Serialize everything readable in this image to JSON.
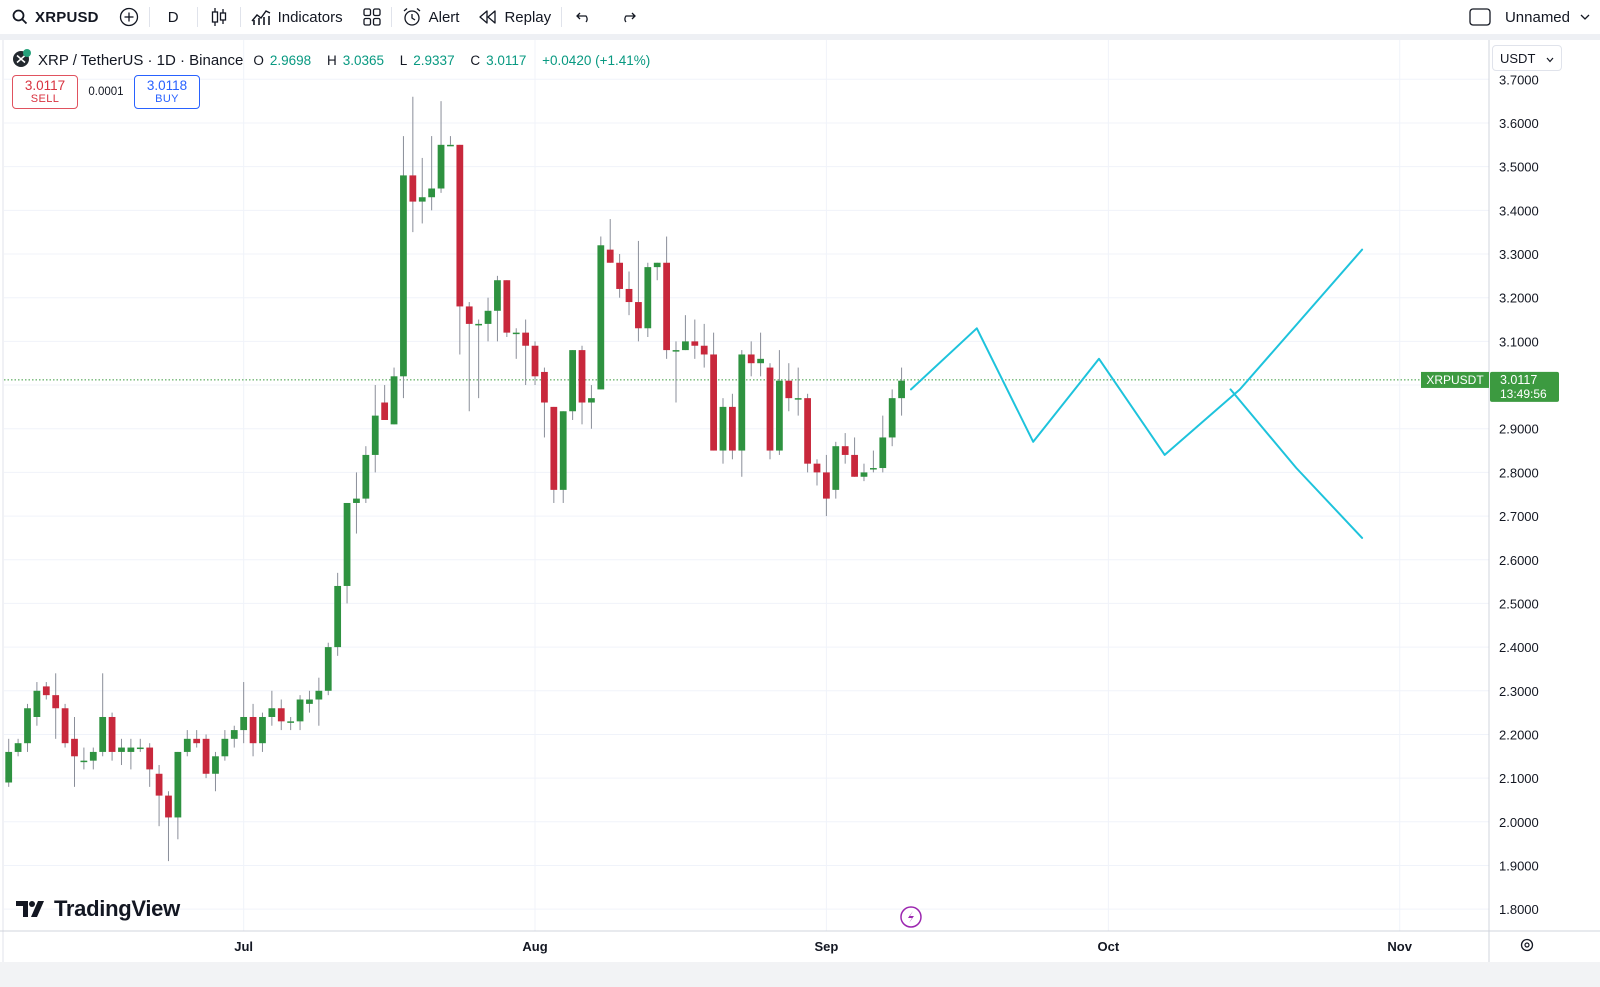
{
  "toolbar": {
    "symbol": "XRPUSD",
    "interval": "D",
    "indicators_label": "Indicators",
    "alert_label": "Alert",
    "replay_label": "Replay",
    "layout_name": "Unnamed",
    "icons": [
      "search-icon",
      "add-symbol-icon",
      "candles-icon",
      "indicators-icon",
      "layouts-icon",
      "alert-icon",
      "replay-icon",
      "undo-icon",
      "redo-icon",
      "checkbox-icon",
      "chevron-down-icon"
    ]
  },
  "legend": {
    "name": "XRP / TetherUS · 1D · Binance",
    "open_key": "O",
    "open": "2.9698",
    "high_key": "H",
    "high": "3.0365",
    "low_key": "L",
    "low": "2.9337",
    "close_key": "C",
    "close": "3.0117",
    "change": "+0.0420 (+1.41%)"
  },
  "trade": {
    "sell_price": "3.0117",
    "sell_label": "SELL",
    "spread": "0.0001",
    "buy_price": "3.0118",
    "buy_label": "BUY"
  },
  "currency": "USDT",
  "price_label": {
    "symbol": "XRPUSDT",
    "price": "3.0117",
    "countdown": "13:49:56"
  },
  "brand": "TradingView",
  "colors": {
    "up": "#2e9240",
    "down": "#c8283c",
    "drawing": "#1ec3dc",
    "accent": "#2962ff",
    "last_price": "#3c9a40"
  },
  "chart_data": {
    "type": "candlestick",
    "y_axis": {
      "ticks": [
        "3.7000",
        "3.6000",
        "3.5000",
        "3.4000",
        "3.3000",
        "3.2000",
        "3.1000",
        "3.0000",
        "2.9000",
        "2.8000",
        "2.7000",
        "2.6000",
        "2.5000",
        "2.4000",
        "2.3000",
        "2.2000",
        "2.1000",
        "2.0000",
        "1.9000",
        "1.8000"
      ],
      "range": [
        1.75,
        3.79
      ]
    },
    "x_axis": {
      "ticks": [
        {
          "label": "Jul",
          "day": 0
        },
        {
          "label": "Aug",
          "day": 31
        },
        {
          "label": "Sep",
          "day": 62
        },
        {
          "label": "Oct",
          "day": 92
        },
        {
          "label": "Nov",
          "day": 123
        }
      ],
      "range_days": [
        -25,
        132
      ]
    },
    "grid": true,
    "last_price": 3.0117,
    "candles": [
      {
        "d": -25,
        "o": 2.09,
        "h": 2.19,
        "l": 2.08,
        "c": 2.16
      },
      {
        "d": -24,
        "o": 2.16,
        "h": 2.19,
        "l": 2.15,
        "c": 2.18
      },
      {
        "d": -23,
        "o": 2.18,
        "h": 2.27,
        "l": 2.16,
        "c": 2.26
      },
      {
        "d": -22,
        "o": 2.24,
        "h": 2.32,
        "l": 2.22,
        "c": 2.3
      },
      {
        "d": -21,
        "o": 2.31,
        "h": 2.32,
        "l": 2.28,
        "c": 2.29
      },
      {
        "d": -20,
        "o": 2.29,
        "h": 2.34,
        "l": 2.19,
        "c": 2.26
      },
      {
        "d": -19,
        "o": 2.26,
        "h": 2.27,
        "l": 2.17,
        "c": 2.18
      },
      {
        "d": -18,
        "o": 2.19,
        "h": 2.24,
        "l": 2.08,
        "c": 2.15
      },
      {
        "d": -17,
        "o": 2.14,
        "h": 2.17,
        "l": 2.12,
        "c": 2.14
      },
      {
        "d": -16,
        "o": 2.14,
        "h": 2.17,
        "l": 2.12,
        "c": 2.16
      },
      {
        "d": -15,
        "o": 2.16,
        "h": 2.34,
        "l": 2.15,
        "c": 2.24
      },
      {
        "d": -14,
        "o": 2.24,
        "h": 2.25,
        "l": 2.14,
        "c": 2.16
      },
      {
        "d": -13,
        "o": 2.16,
        "h": 2.19,
        "l": 2.13,
        "c": 2.17
      },
      {
        "d": -12,
        "o": 2.16,
        "h": 2.19,
        "l": 2.12,
        "c": 2.17
      },
      {
        "d": -11,
        "o": 2.17,
        "h": 2.19,
        "l": 2.16,
        "c": 2.17
      },
      {
        "d": -10,
        "o": 2.17,
        "h": 2.18,
        "l": 2.08,
        "c": 2.12
      },
      {
        "d": -9,
        "o": 2.11,
        "h": 2.13,
        "l": 1.99,
        "c": 2.06
      },
      {
        "d": -8,
        "o": 2.06,
        "h": 2.07,
        "l": 1.91,
        "c": 2.01
      },
      {
        "d": -7,
        "o": 2.01,
        "h": 2.16,
        "l": 1.96,
        "c": 2.16
      },
      {
        "d": -6,
        "o": 2.16,
        "h": 2.21,
        "l": 2.15,
        "c": 2.19
      },
      {
        "d": -5,
        "o": 2.19,
        "h": 2.21,
        "l": 2.17,
        "c": 2.18
      },
      {
        "d": -4,
        "o": 2.19,
        "h": 2.2,
        "l": 2.1,
        "c": 2.11
      },
      {
        "d": -3,
        "o": 2.11,
        "h": 2.16,
        "l": 2.07,
        "c": 2.15
      },
      {
        "d": -2,
        "o": 2.15,
        "h": 2.21,
        "l": 2.14,
        "c": 2.19
      },
      {
        "d": -1,
        "o": 2.19,
        "h": 2.22,
        "l": 2.17,
        "c": 2.21
      },
      {
        "d": 0,
        "o": 2.21,
        "h": 2.32,
        "l": 2.18,
        "c": 2.24
      },
      {
        "d": 1,
        "o": 2.24,
        "h": 2.27,
        "l": 2.15,
        "c": 2.18
      },
      {
        "d": 2,
        "o": 2.18,
        "h": 2.25,
        "l": 2.16,
        "c": 2.24
      },
      {
        "d": 3,
        "o": 2.24,
        "h": 2.3,
        "l": 2.22,
        "c": 2.26
      },
      {
        "d": 4,
        "o": 2.26,
        "h": 2.28,
        "l": 2.21,
        "c": 2.23
      },
      {
        "d": 5,
        "o": 2.23,
        "h": 2.24,
        "l": 2.21,
        "c": 2.23
      },
      {
        "d": 6,
        "o": 2.23,
        "h": 2.29,
        "l": 2.21,
        "c": 2.28
      },
      {
        "d": 7,
        "o": 2.27,
        "h": 2.3,
        "l": 2.25,
        "c": 2.28
      },
      {
        "d": 8,
        "o": 2.28,
        "h": 2.33,
        "l": 2.22,
        "c": 2.3
      },
      {
        "d": 9,
        "o": 2.3,
        "h": 2.41,
        "l": 2.29,
        "c": 2.4
      },
      {
        "d": 10,
        "o": 2.4,
        "h": 2.57,
        "l": 2.38,
        "c": 2.54
      },
      {
        "d": 11,
        "o": 2.54,
        "h": 2.72,
        "l": 2.5,
        "c": 2.73
      },
      {
        "d": 12,
        "o": 2.73,
        "h": 2.8,
        "l": 2.66,
        "c": 2.74
      },
      {
        "d": 13,
        "o": 2.74,
        "h": 2.86,
        "l": 2.73,
        "c": 2.84
      },
      {
        "d": 14,
        "o": 2.84,
        "h": 3.0,
        "l": 2.8,
        "c": 2.93
      },
      {
        "d": 15,
        "o": 2.96,
        "h": 3.0,
        "l": 2.93,
        "c": 2.92
      },
      {
        "d": 16,
        "o": 2.91,
        "h": 3.04,
        "l": 2.91,
        "c": 3.02
      },
      {
        "d": 17,
        "o": 3.02,
        "h": 3.57,
        "l": 2.97,
        "c": 3.48
      },
      {
        "d": 18,
        "o": 3.48,
        "h": 3.66,
        "l": 3.35,
        "c": 3.42
      },
      {
        "d": 19,
        "o": 3.42,
        "h": 3.52,
        "l": 3.37,
        "c": 3.43
      },
      {
        "d": 20,
        "o": 3.43,
        "h": 3.57,
        "l": 3.4,
        "c": 3.45
      },
      {
        "d": 21,
        "o": 3.45,
        "h": 3.65,
        "l": 3.44,
        "c": 3.55
      },
      {
        "d": 22,
        "o": 3.55,
        "h": 3.57,
        "l": 3.55,
        "c": 3.55
      },
      {
        "d": 23,
        "o": 3.55,
        "h": 3.55,
        "l": 3.07,
        "c": 3.18
      },
      {
        "d": 24,
        "o": 3.18,
        "h": 3.19,
        "l": 2.94,
        "c": 3.14
      },
      {
        "d": 25,
        "o": 3.14,
        "h": 3.15,
        "l": 2.97,
        "c": 3.14
      },
      {
        "d": 26,
        "o": 3.14,
        "h": 3.2,
        "l": 3.1,
        "c": 3.17
      },
      {
        "d": 27,
        "o": 3.17,
        "h": 3.25,
        "l": 3.1,
        "c": 3.24
      },
      {
        "d": 28,
        "o": 3.24,
        "h": 3.24,
        "l": 3.11,
        "c": 3.12
      },
      {
        "d": 29,
        "o": 3.12,
        "h": 3.13,
        "l": 3.06,
        "c": 3.12
      },
      {
        "d": 30,
        "o": 3.12,
        "h": 3.15,
        "l": 3.0,
        "c": 3.09
      },
      {
        "d": 31,
        "o": 3.09,
        "h": 3.1,
        "l": 3.0,
        "c": 3.02
      },
      {
        "d": 32,
        "o": 3.03,
        "h": 3.04,
        "l": 2.88,
        "c": 2.96
      },
      {
        "d": 33,
        "o": 2.95,
        "h": 2.95,
        "l": 2.73,
        "c": 2.76
      },
      {
        "d": 34,
        "o": 2.76,
        "h": 2.94,
        "l": 2.73,
        "c": 2.94
      },
      {
        "d": 35,
        "o": 2.94,
        "h": 3.08,
        "l": 2.92,
        "c": 3.08
      },
      {
        "d": 36,
        "o": 3.08,
        "h": 3.09,
        "l": 2.91,
        "c": 2.96
      },
      {
        "d": 37,
        "o": 2.96,
        "h": 3.0,
        "l": 2.9,
        "c": 2.97
      },
      {
        "d": 38,
        "o": 2.99,
        "h": 3.34,
        "l": 2.99,
        "c": 3.32
      },
      {
        "d": 39,
        "o": 3.31,
        "h": 3.38,
        "l": 3.28,
        "c": 3.28
      },
      {
        "d": 40,
        "o": 3.28,
        "h": 3.3,
        "l": 3.2,
        "c": 3.22
      },
      {
        "d": 41,
        "o": 3.22,
        "h": 3.26,
        "l": 3.16,
        "c": 3.19
      },
      {
        "d": 42,
        "o": 3.19,
        "h": 3.33,
        "l": 3.1,
        "c": 3.13
      },
      {
        "d": 43,
        "o": 3.13,
        "h": 3.28,
        "l": 3.11,
        "c": 3.27
      },
      {
        "d": 44,
        "o": 3.27,
        "h": 3.28,
        "l": 3.24,
        "c": 3.28
      },
      {
        "d": 45,
        "o": 3.28,
        "h": 3.34,
        "l": 3.06,
        "c": 3.08
      },
      {
        "d": 46,
        "o": 3.08,
        "h": 3.1,
        "l": 2.96,
        "c": 3.08
      },
      {
        "d": 47,
        "o": 3.08,
        "h": 3.16,
        "l": 3.08,
        "c": 3.1
      },
      {
        "d": 48,
        "o": 3.1,
        "h": 3.15,
        "l": 3.06,
        "c": 3.09
      },
      {
        "d": 49,
        "o": 3.09,
        "h": 3.14,
        "l": 3.04,
        "c": 3.07
      },
      {
        "d": 50,
        "o": 3.07,
        "h": 3.12,
        "l": 2.85,
        "c": 2.85
      },
      {
        "d": 51,
        "o": 2.85,
        "h": 2.97,
        "l": 2.82,
        "c": 2.95
      },
      {
        "d": 52,
        "o": 2.95,
        "h": 2.98,
        "l": 2.83,
        "c": 2.85
      },
      {
        "d": 53,
        "o": 2.85,
        "h": 3.08,
        "l": 2.79,
        "c": 3.07
      },
      {
        "d": 54,
        "o": 3.07,
        "h": 3.1,
        "l": 3.02,
        "c": 3.05
      },
      {
        "d": 55,
        "o": 3.05,
        "h": 3.12,
        "l": 3.02,
        "c": 3.06
      },
      {
        "d": 56,
        "o": 3.04,
        "h": 3.05,
        "l": 2.83,
        "c": 2.85
      },
      {
        "d": 57,
        "o": 2.85,
        "h": 3.08,
        "l": 2.84,
        "c": 3.01
      },
      {
        "d": 58,
        "o": 3.01,
        "h": 3.05,
        "l": 2.94,
        "c": 2.97
      },
      {
        "d": 59,
        "o": 2.97,
        "h": 3.04,
        "l": 2.93,
        "c": 2.97
      },
      {
        "d": 60,
        "o": 2.97,
        "h": 2.98,
        "l": 2.8,
        "c": 2.82
      },
      {
        "d": 61,
        "o": 2.82,
        "h": 2.83,
        "l": 2.77,
        "c": 2.8
      },
      {
        "d": 62,
        "o": 2.8,
        "h": 2.84,
        "l": 2.7,
        "c": 2.74
      },
      {
        "d": 63,
        "o": 2.76,
        "h": 2.87,
        "l": 2.74,
        "c": 2.86
      },
      {
        "d": 64,
        "o": 2.86,
        "h": 2.89,
        "l": 2.82,
        "c": 2.84
      },
      {
        "d": 65,
        "o": 2.84,
        "h": 2.88,
        "l": 2.79,
        "c": 2.79
      },
      {
        "d": 66,
        "o": 2.79,
        "h": 2.82,
        "l": 2.78,
        "c": 2.8
      },
      {
        "d": 67,
        "o": 2.81,
        "h": 2.85,
        "l": 2.8,
        "c": 2.81
      },
      {
        "d": 68,
        "o": 2.81,
        "h": 2.93,
        "l": 2.8,
        "c": 2.88
      },
      {
        "d": 69,
        "o": 2.88,
        "h": 2.99,
        "l": 2.86,
        "c": 2.97
      },
      {
        "d": 70,
        "o": 2.97,
        "h": 3.04,
        "l": 2.93,
        "c": 3.01
      }
    ],
    "drawings": [
      {
        "name": "projection-main",
        "points": [
          [
            71,
            2.99
          ],
          [
            78,
            3.13
          ],
          [
            84,
            2.87
          ],
          [
            91,
            3.06
          ],
          [
            98,
            2.84
          ],
          [
            106,
            2.99
          ],
          [
            119,
            3.31
          ]
        ]
      },
      {
        "name": "projection-bearish",
        "points": [
          [
            105,
            2.99
          ],
          [
            112,
            2.81
          ],
          [
            119,
            2.65
          ]
        ]
      }
    ]
  }
}
